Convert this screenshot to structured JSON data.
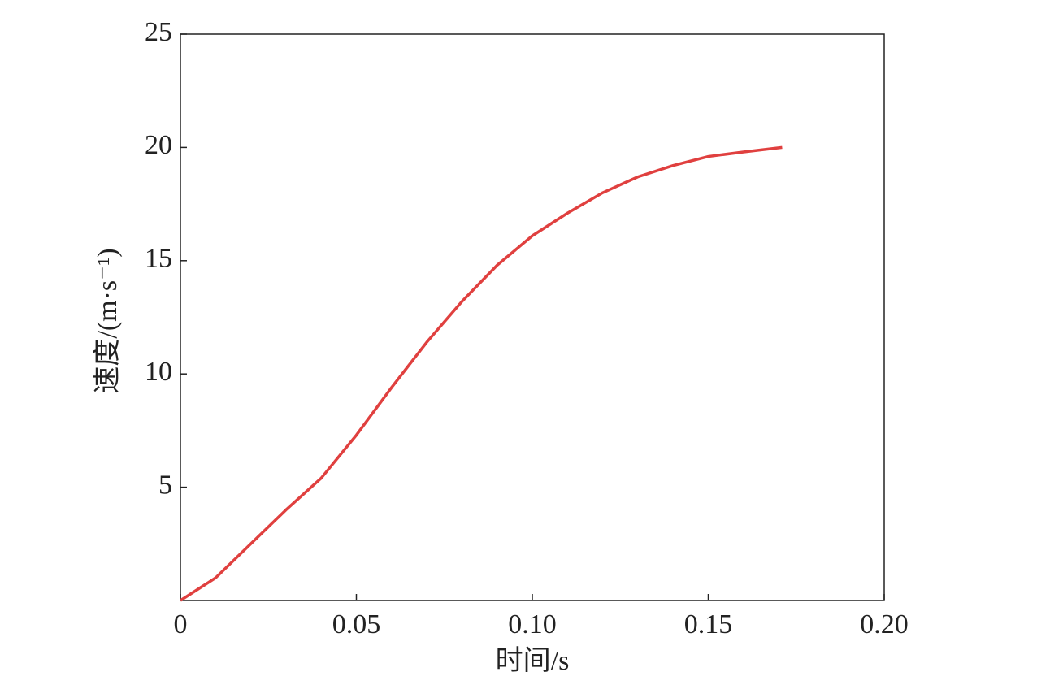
{
  "chart_data": {
    "type": "line",
    "x_label": "时间/s",
    "y_label": "速度/(m·s⁻¹)",
    "x": [
      0,
      0.01,
      0.02,
      0.03,
      0.04,
      0.05,
      0.06,
      0.07,
      0.08,
      0.09,
      0.1,
      0.11,
      0.12,
      0.13,
      0.14,
      0.15,
      0.16,
      0.171
    ],
    "series": [
      {
        "color": "#e0403f",
        "values": [
          0,
          1.0,
          2.5,
          4.0,
          5.4,
          7.3,
          9.4,
          11.4,
          13.2,
          14.8,
          16.1,
          17.1,
          18.0,
          18.7,
          19.2,
          19.6,
          19.8,
          20.0
        ]
      }
    ],
    "xlim": [
      0,
      0.2
    ],
    "xticks": [
      0,
      0.05,
      {
        "value": 0.1,
        "label": "0.10"
      },
      0.15,
      {
        "value": 0.2,
        "label": "0.20"
      }
    ],
    "ylim": [
      0,
      25
    ],
    "yticks": [
      5,
      10,
      15,
      20,
      25
    ]
  }
}
